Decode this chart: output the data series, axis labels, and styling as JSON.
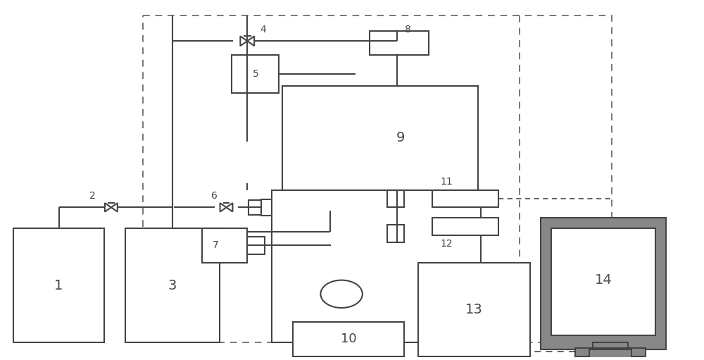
{
  "bg_color": "#ffffff",
  "lc": "#444444",
  "dc": "#555555",
  "lw": 1.5,
  "dlw": 1.3,
  "figsize": [
    10.0,
    5.11
  ],
  "dpi": 100
}
